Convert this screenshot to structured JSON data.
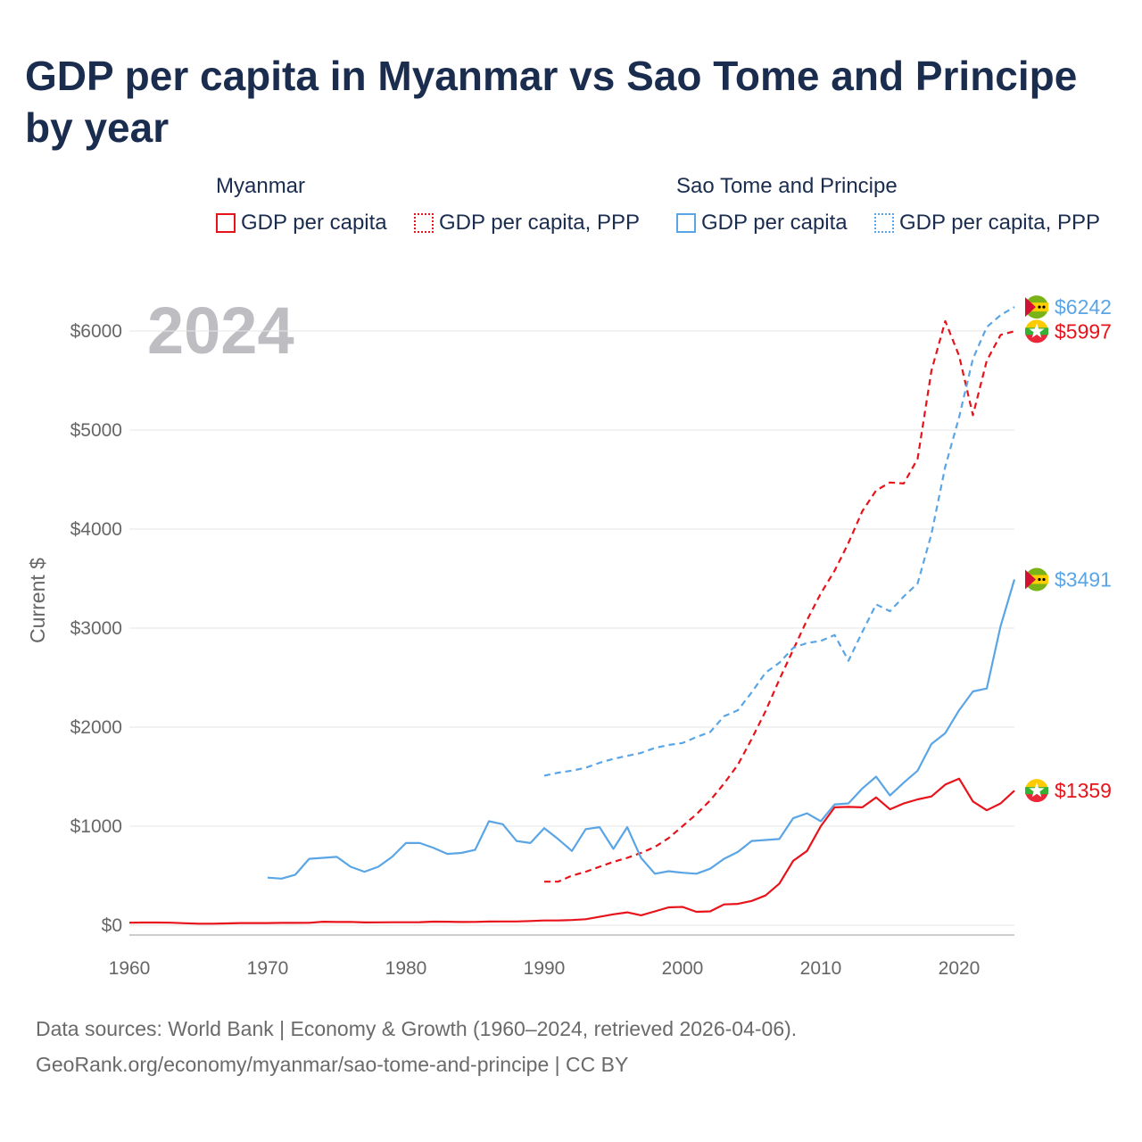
{
  "title": "GDP per capita in Myanmar vs Sao Tome and Principe by year",
  "legend": {
    "groups": [
      {
        "country": "Myanmar",
        "color": "#e8131a",
        "items": [
          {
            "label": "GDP per capita",
            "style": "solid"
          },
          {
            "label": "GDP per capita, PPP",
            "style": "dotted"
          }
        ]
      },
      {
        "country": "Sao Tome and Principe",
        "color": "#5aa5e6",
        "items": [
          {
            "label": "GDP per capita",
            "style": "solid"
          },
          {
            "label": "GDP per capita, PPP",
            "style": "dotted"
          }
        ]
      }
    ]
  },
  "year_label": "2024",
  "footer": {
    "line1": "Data sources: World Bank | Economy & Growth (1960–2024, retrieved 2026-04-06).",
    "line2": "GeoRank.org/economy/myanmar/sao-tome-and-principe | CC BY"
  },
  "chart_data": {
    "type": "line",
    "title": "GDP per capita in Myanmar vs Sao Tome and Principe by year",
    "xlabel": "",
    "ylabel": "Current $",
    "xlim": [
      1960,
      2024
    ],
    "ylim": [
      0,
      6000
    ],
    "x_ticks": [
      1960,
      1970,
      1980,
      1990,
      2000,
      2010,
      2020
    ],
    "x_tick_labels": [
      "1960",
      "1970",
      "1980",
      "1990",
      "2000",
      "2010",
      "2020"
    ],
    "y_ticks": [
      0,
      1000,
      2000,
      3000,
      4000,
      5000,
      6000
    ],
    "y_tick_labels": [
      "$0",
      "$1000",
      "$2000",
      "$3000",
      "$4000",
      "$5000",
      "$6000"
    ],
    "grid": true,
    "series": [
      {
        "name": "Myanmar GDP per capita",
        "color": "#e8131a",
        "dash": false,
        "start": 1960,
        "values": [
          25,
          27,
          27,
          25,
          20,
          15,
          15,
          18,
          22,
          22,
          22,
          23,
          23,
          24,
          35,
          32,
          33,
          28,
          29,
          30,
          30,
          31,
          36,
          35,
          32,
          33,
          37,
          38,
          38,
          42,
          48,
          48,
          52,
          60,
          85,
          110,
          130,
          100,
          140,
          180,
          185,
          135,
          140,
          210,
          215,
          245,
          300,
          420,
          650,
          750,
          1000,
          1190,
          1195,
          1190,
          1290,
          1170,
          1230,
          1270,
          1300,
          1420,
          1480,
          1250,
          1160,
          1230,
          1359
        ],
        "end_label": "$1359"
      },
      {
        "name": "Myanmar GDP per capita, PPP",
        "color": "#e8131a",
        "dash": true,
        "start": 1990,
        "values": [
          440,
          440,
          500,
          540,
          590,
          640,
          680,
          730,
          790,
          880,
          1000,
          1120,
          1260,
          1430,
          1620,
          1880,
          2160,
          2480,
          2780,
          3080,
          3350,
          3580,
          3860,
          4180,
          4390,
          4470,
          4460,
          4710,
          5600,
          6100,
          5750,
          5150,
          5700,
          5960,
          5997
        ],
        "end_label": "$5997"
      },
      {
        "name": "Sao Tome and Principe GDP per capita",
        "color": "#5aa5e6",
        "dash": false,
        "start": 1970,
        "values": [
          480,
          470,
          510,
          670,
          680,
          690,
          590,
          540,
          590,
          690,
          830,
          830,
          780,
          720,
          730,
          760,
          1050,
          1020,
          850,
          830,
          980,
          870,
          750,
          970,
          990,
          770,
          990,
          680,
          520,
          545,
          530,
          520,
          570,
          670,
          740,
          850,
          860,
          870,
          1080,
          1130,
          1050,
          1220,
          1230,
          1380,
          1500,
          1310,
          1440,
          1560,
          1830,
          1940,
          2170,
          2360,
          2390,
          3020,
          3491
        ],
        "end_label": "$3491"
      },
      {
        "name": "Sao Tome and Principe GDP per capita, PPP",
        "color": "#5aa5e6",
        "dash": true,
        "start": 1990,
        "values": [
          1510,
          1540,
          1560,
          1590,
          1640,
          1680,
          1710,
          1740,
          1790,
          1820,
          1840,
          1900,
          1950,
          2110,
          2170,
          2350,
          2550,
          2650,
          2800,
          2850,
          2870,
          2930,
          2670,
          2960,
          3240,
          3170,
          3320,
          3450,
          3950,
          4630,
          5130,
          5720,
          6040,
          6160,
          6242
        ],
        "end_label": "$6242"
      }
    ]
  },
  "markers": [
    {
      "series": 3,
      "flag": "sao-tome-flag"
    },
    {
      "series": 1,
      "flag": "myanmar-flag"
    },
    {
      "series": 2,
      "flag": "sao-tome-flag"
    },
    {
      "series": 0,
      "flag": "myanmar-flag"
    }
  ]
}
